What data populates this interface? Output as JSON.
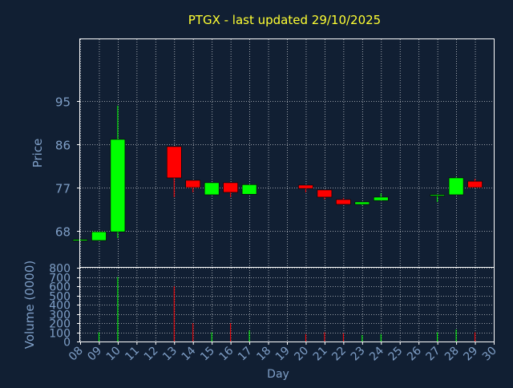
{
  "colors": {
    "background": "#111f33",
    "axis": "#ffffff",
    "grid": "#ffffff",
    "title": "#ffff33",
    "label": "#7f9fc7",
    "up": "#00ff00",
    "down": "#ff0000",
    "day_label": "#000000"
  },
  "chart_data": {
    "type": "candlestick",
    "title": "PTGX - last updated 29/10/2025",
    "price_panel": {
      "ylabel": "Price",
      "ylim": [
        60.5,
        107.8
      ],
      "yticks": [
        68,
        77,
        86,
        95
      ],
      "grid": true
    },
    "volume_panel": {
      "ylabel": "Volume (0000)",
      "ylim": [
        0,
        800
      ],
      "yticks": [
        0,
        100,
        200,
        300,
        400,
        500,
        600,
        700,
        800
      ],
      "grid": true
    },
    "xlabel": "Day",
    "xlim": [
      8,
      30
    ],
    "x_ticks": [
      "08",
      "09",
      "10",
      "11",
      "12",
      "13",
      "14",
      "15",
      "16",
      "17",
      "18",
      "19",
      "20",
      "21",
      "22",
      "23",
      "24",
      "25",
      "26",
      "27",
      "28",
      "29",
      "30"
    ],
    "candles": [
      {
        "day": 8,
        "open": 66.2,
        "close": 66.2,
        "high": 66.3,
        "low": 66.1,
        "volume": 0
      },
      {
        "day": 9,
        "open": 66.0,
        "close": 67.8,
        "high": 67.8,
        "low": 66.0,
        "volume": 100
      },
      {
        "day": 10,
        "open": 67.8,
        "close": 87.0,
        "high": 94.0,
        "low": 66.5,
        "volume": 700
      },
      {
        "day": 13,
        "open": 85.5,
        "close": 79.0,
        "high": 85.5,
        "low": 75.0,
        "volume": 600
      },
      {
        "day": 14,
        "open": 78.5,
        "close": 77.0,
        "high": 78.5,
        "low": 76.0,
        "volume": 200
      },
      {
        "day": 15,
        "open": 75.5,
        "close": 78.0,
        "high": 78.0,
        "low": 75.5,
        "volume": 100
      },
      {
        "day": 16,
        "open": 78.0,
        "close": 76.0,
        "high": 78.0,
        "low": 75.0,
        "volume": 200
      },
      {
        "day": 17,
        "open": 75.6,
        "close": 77.6,
        "high": 77.6,
        "low": 75.6,
        "volume": 120
      },
      {
        "day": 20,
        "open": 77.5,
        "close": 76.8,
        "high": 77.5,
        "low": 76.0,
        "volume": 80
      },
      {
        "day": 21,
        "open": 76.5,
        "close": 75.0,
        "high": 76.5,
        "low": 74.5,
        "volume": 100
      },
      {
        "day": 22,
        "open": 74.5,
        "close": 73.5,
        "high": 74.8,
        "low": 73.5,
        "volume": 90
      },
      {
        "day": 23,
        "open": 73.5,
        "close": 74.0,
        "high": 74.0,
        "low": 73.3,
        "volume": 70
      },
      {
        "day": 24,
        "open": 74.3,
        "close": 75.0,
        "high": 75.8,
        "low": 74.3,
        "volume": 80
      },
      {
        "day": 27,
        "open": 75.3,
        "close": 75.5,
        "high": 75.6,
        "low": 74.0,
        "volume": 100
      },
      {
        "day": 28,
        "open": 75.5,
        "close": 79.0,
        "high": 79.2,
        "low": 75.5,
        "volume": 130
      },
      {
        "day": 29,
        "open": 78.3,
        "close": 77.0,
        "high": 78.8,
        "low": 77.0,
        "volume": 100
      }
    ]
  }
}
